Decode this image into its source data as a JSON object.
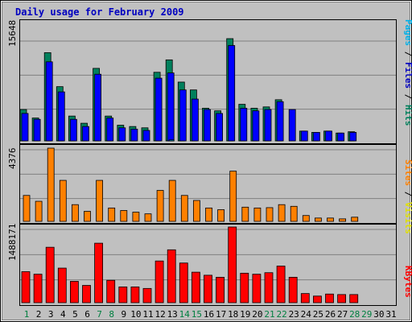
{
  "title": "Daily usage for February 2009",
  "labels": {
    "top_max": "15648",
    "mid_max": "4376",
    "bot_max": "1488171"
  },
  "right_labels": {
    "top": [
      {
        "text": "Pages",
        "color": "#00b0e8"
      },
      {
        "text": " / ",
        "color": "#000000"
      },
      {
        "text": "Files",
        "color": "#0000c0"
      },
      {
        "text": " / ",
        "color": "#000000"
      },
      {
        "text": "Hits",
        "color": "#00805c"
      }
    ],
    "mid": [
      {
        "text": "Sites",
        "color": "#ff8000"
      },
      {
        "text": " / ",
        "color": "#000000"
      },
      {
        "text": "Visits",
        "color": "#e0e000"
      }
    ],
    "bot": [
      {
        "text": "KBytes",
        "color": "#ff0000"
      }
    ]
  },
  "colors": {
    "background": "#c0c0c0",
    "frame": "#d8d8d8",
    "grid": "#808080",
    "title": "#0000c0",
    "hits": "#00805c",
    "files": "#0000ff",
    "pages": "#00c0ff",
    "visits": "#ffff00",
    "sites": "#ff8000",
    "kbytes": "#ff0000",
    "weekend": "#008040",
    "weekday": "#000000"
  },
  "chart_data": {
    "type": "bar",
    "title": "Daily usage for February 2009",
    "categories": [
      "1",
      "2",
      "3",
      "4",
      "5",
      "6",
      "7",
      "8",
      "9",
      "10",
      "11",
      "12",
      "13",
      "14",
      "15",
      "16",
      "17",
      "18",
      "19",
      "20",
      "21",
      "22",
      "23",
      "24",
      "25",
      "26",
      "27",
      "28",
      "29",
      "30",
      "31"
    ],
    "weekend_days": [
      "1",
      "7",
      "8",
      "14",
      "15",
      "21",
      "22",
      "28",
      "29"
    ],
    "panels": [
      {
        "name": "hits-files-pages",
        "ylabel": "Pages / Files / Hits",
        "ymax": 15648,
        "series": [
          {
            "name": "Hits",
            "values": [
              4800,
              3500,
              13500,
              8300,
              3800,
              2700,
              11100,
              3800,
              2400,
              2200,
              2000,
              10500,
              12400,
              9000,
              7800,
              5000,
              4600,
              15648,
              5600,
              5000,
              5200,
              6300,
              0,
              1500,
              1300,
              1500,
              1200,
              1400,
              0,
              0,
              0
            ]
          },
          {
            "name": "Files",
            "values": [
              4200,
              3300,
              12100,
              7500,
              3300,
              2200,
              10200,
              3500,
              2000,
              1800,
              1600,
              9600,
              10400,
              7800,
              6400,
              4800,
              4200,
              14600,
              5000,
              4600,
              4800,
              6000,
              4800,
              1500,
              1300,
              1500,
              1200,
              1300,
              0,
              0,
              0
            ]
          },
          {
            "name": "Pages",
            "values": [
              0,
              0,
              0,
              0,
              0,
              0,
              0,
              0,
              0,
              0,
              0,
              0,
              150,
              0,
              0,
              0,
              0,
              0,
              0,
              0,
              0,
              0,
              0,
              0,
              0,
              0,
              0,
              0,
              0,
              0,
              0
            ]
          }
        ]
      },
      {
        "name": "sites-visits",
        "ylabel": "Sites / Visits",
        "ymax": 4376,
        "series": [
          {
            "name": "Visits",
            "values": [
              0,
              0,
              0,
              0,
              0,
              0,
              0,
              0,
              0,
              0,
              0,
              0,
              0,
              0,
              0,
              0,
              0,
              0,
              0,
              0,
              0,
              0,
              0,
              0,
              0,
              0,
              0,
              0,
              0,
              0,
              0
            ]
          },
          {
            "name": "Sites",
            "values": [
              1550,
              1200,
              4376,
              2450,
              1000,
              600,
              2450,
              800,
              650,
              550,
              450,
              1850,
              2450,
              1550,
              1250,
              800,
              700,
              3000,
              850,
              800,
              820,
              1000,
              900,
              350,
              200,
              200,
              150,
              250,
              0,
              0,
              0
            ]
          }
        ]
      },
      {
        "name": "kbytes",
        "ylabel": "KBytes",
        "ymax": 1488171,
        "series": [
          {
            "name": "KBytes",
            "values": [
              610000,
              560000,
              1090000,
              680000,
              420000,
              340000,
              1170000,
              440000,
              310000,
              310000,
              280000,
              820000,
              1040000,
              780000,
              600000,
              540000,
              500000,
              1488171,
              580000,
              560000,
              590000,
              720000,
              500000,
              180000,
              130000,
              170000,
              160000,
              160000,
              0,
              0,
              0
            ]
          }
        ]
      }
    ]
  }
}
